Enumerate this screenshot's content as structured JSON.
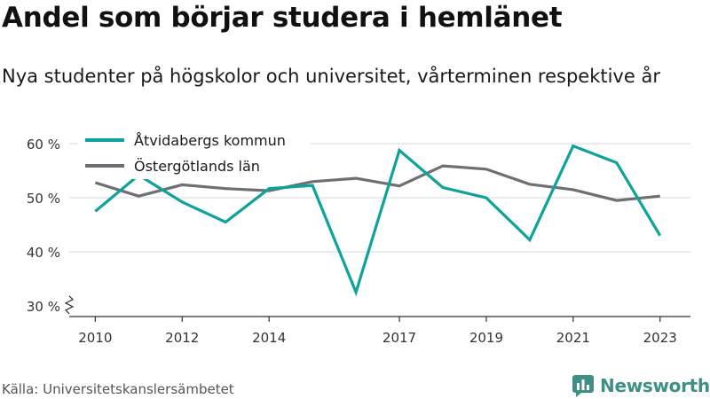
{
  "title": "Andel som börjar studera i hemlänet",
  "subtitle": "Nya studenter på högskolor och universitet, vårterminen respektive år",
  "source": "Källa: Universitetskanslersämbetet",
  "brand": "Newsworthy",
  "colors": {
    "series1": "#0ea39a",
    "series2": "#6e6e74",
    "grid": "#d9d9d9",
    "axis": "#333333",
    "brand": "#3f8f86"
  },
  "chart_data": {
    "type": "line",
    "x": [
      2010,
      2011,
      2012,
      2013,
      2014,
      2015,
      2016,
      2017,
      2018,
      2019,
      2020,
      2021,
      2022,
      2023
    ],
    "x_ticks": [
      "2010",
      "2012",
      "2014",
      "2017",
      "2019",
      "2021",
      "2023"
    ],
    "y_ticks": [
      {
        "value": 30,
        "label": "30 %"
      },
      {
        "value": 40,
        "label": "40 %"
      },
      {
        "value": 50,
        "label": "50 %"
      },
      {
        "value": 60,
        "label": "60 %"
      }
    ],
    "ylim": [
      28,
      62
    ],
    "xlim": [
      2009.4,
      2023.7
    ],
    "y_axis_break": true,
    "grid": true,
    "legend_position": "top-left",
    "series": [
      {
        "name": "Åtvidabergs kommun",
        "values": [
          47.5,
          54.2,
          49.2,
          45.5,
          51.7,
          52.3,
          32.5,
          58.8,
          51.9,
          50.0,
          42.2,
          59.6,
          56.5,
          43.0
        ]
      },
      {
        "name": "Östergötlands län",
        "values": [
          52.8,
          50.3,
          52.4,
          51.7,
          51.3,
          53.0,
          53.6,
          52.2,
          55.9,
          55.3,
          52.5,
          51.5,
          49.5,
          50.3
        ]
      }
    ]
  }
}
